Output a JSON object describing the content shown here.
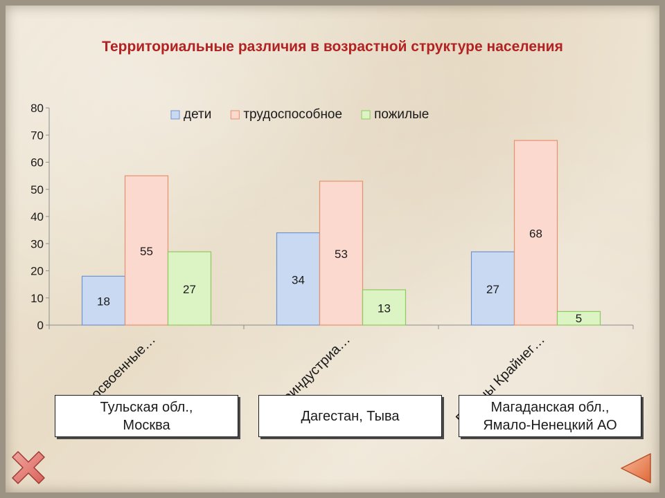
{
  "slide": {
    "title": "Территориальные различия в возрастной структуре населения"
  },
  "chart_data": {
    "type": "bar",
    "categories": [
      "Староосвоенные…",
      "Слабоиндустриа…",
      "Районы Крайнег…"
    ],
    "series": [
      {
        "name": "дети",
        "values": [
          18,
          34,
          27
        ],
        "fill": "#c9d9f2",
        "stroke": "#6f93cf"
      },
      {
        "name": "трудоспособное",
        "values": [
          55,
          53,
          68
        ],
        "fill": "#fbd9cf",
        "stroke": "#e6916c"
      },
      {
        "name": "пожилые",
        "values": [
          27,
          13,
          5
        ],
        "fill": "#dcf3c4",
        "stroke": "#8cc95e"
      }
    ],
    "ylim": [
      0,
      80
    ],
    "yticks": [
      0,
      10,
      20,
      30,
      40,
      50,
      60,
      70,
      80
    ],
    "legend_position": "top",
    "grid": false,
    "data_labels": true
  },
  "callouts": [
    {
      "text": "Тульская обл.,\nМосква"
    },
    {
      "text": "Дагестан, Тыва"
    },
    {
      "text": "Магаданская обл.,\nЯмало-Ненецкий АО"
    }
  ],
  "icons": {
    "close": "close-x-icon",
    "next": "next-arrow-icon"
  },
  "colors": {
    "title": "#b22222",
    "axis": "#8c8c8c"
  }
}
